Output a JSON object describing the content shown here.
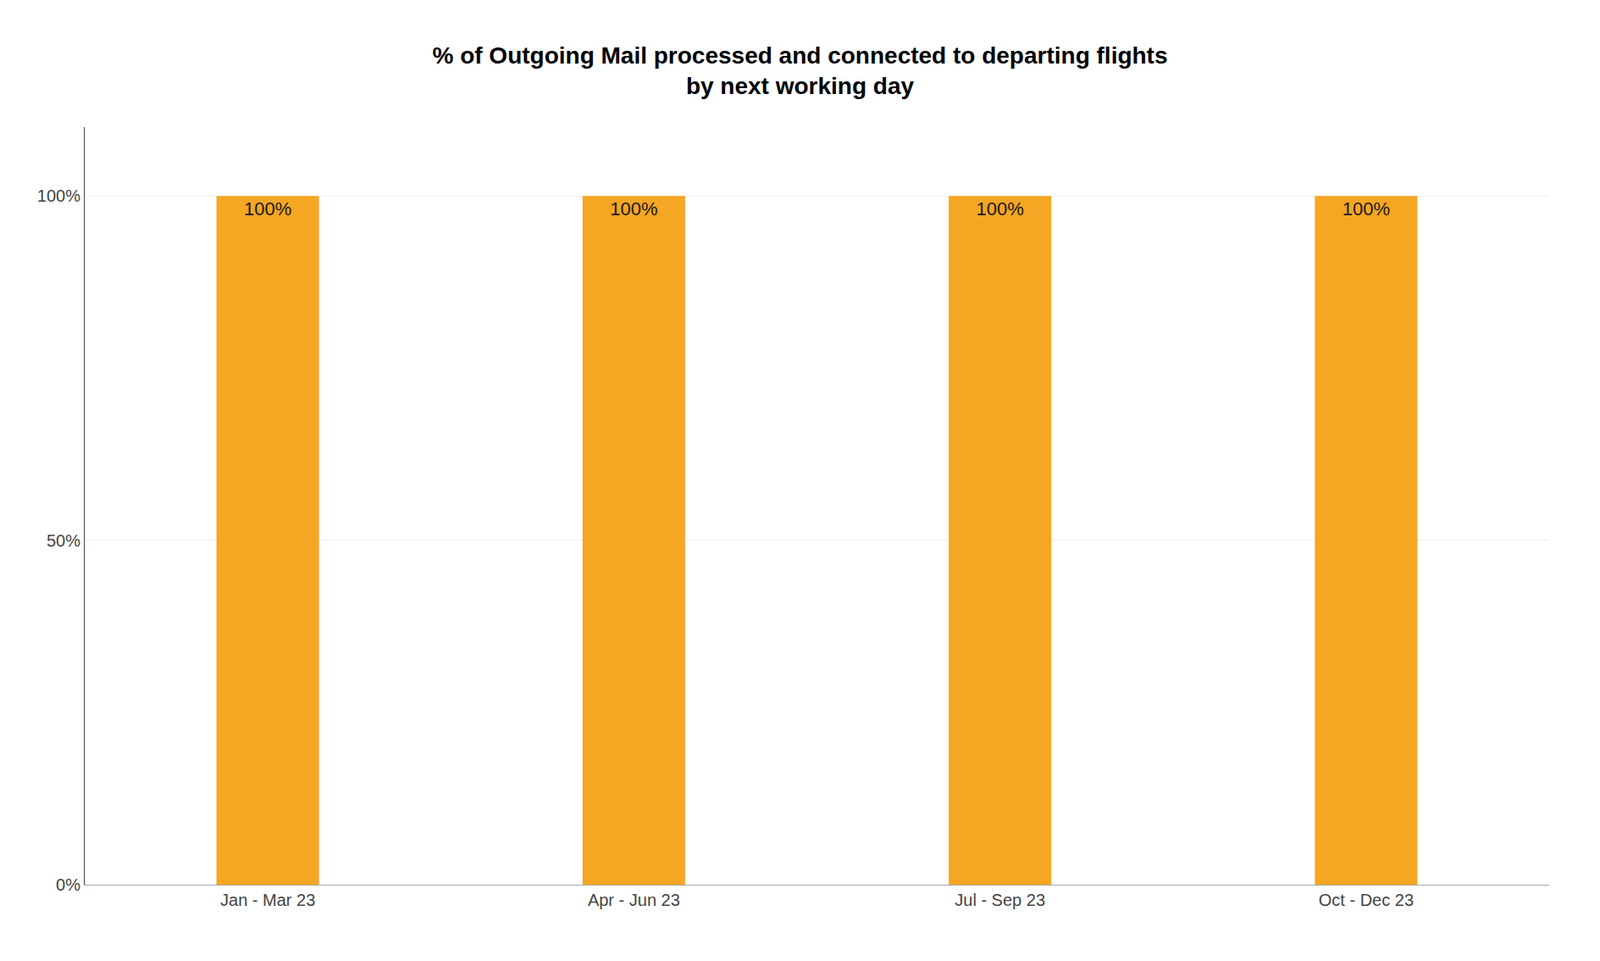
{
  "chart_data": {
    "type": "bar",
    "title": "% of Outgoing Mail processed and connected to departing flights\nby next working day",
    "categories": [
      "Jan - Mar 23",
      "Apr - Jun 23",
      "Jul - Sep 23",
      "Oct - Dec 23"
    ],
    "values": [
      100,
      100,
      100,
      100
    ],
    "value_labels": [
      "100%",
      "100%",
      "100%",
      "100%"
    ],
    "data_labels": true,
    "color": "#F5A623",
    "ylim": [
      0,
      110
    ],
    "yticks": [
      {
        "value": 0,
        "label": "0%"
      },
      {
        "value": 50,
        "label": "50%"
      },
      {
        "value": 100,
        "label": "100%"
      }
    ],
    "grid": true
  }
}
